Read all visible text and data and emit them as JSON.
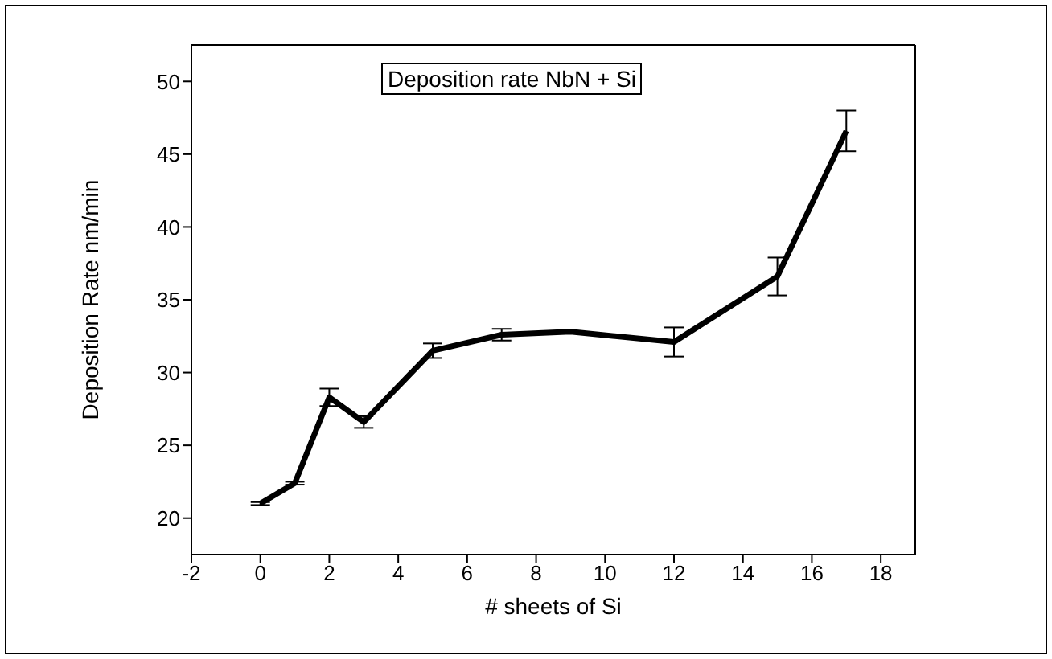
{
  "chart_data": {
    "type": "line",
    "xlabel": "# sheets of Si",
    "ylabel": "Deposition Rate nm/min",
    "annotations": [
      "Deposition rate NbN + Si"
    ],
    "x": [
      0,
      1,
      2,
      3,
      5,
      7,
      9,
      12,
      15,
      17
    ],
    "series": [
      {
        "color": "#000000",
        "values": [
          21.0,
          22.4,
          28.3,
          26.6,
          31.5,
          32.6,
          32.8,
          32.1,
          36.6,
          46.6
        ],
        "errors": [
          0.1,
          0.1,
          0.6,
          0.4,
          0.5,
          0.4,
          null,
          1.0,
          1.3,
          1.4
        ]
      }
    ],
    "xlim": [
      -2,
      19
    ],
    "xticks": [
      -2,
      0,
      2,
      4,
      6,
      8,
      10,
      12,
      14,
      16,
      18
    ],
    "ylim": [
      17.5,
      52.5
    ],
    "yticks": [
      20,
      25,
      30,
      35,
      40,
      45,
      50
    ],
    "grid": false,
    "marker": "none",
    "line_style": "solid"
  }
}
